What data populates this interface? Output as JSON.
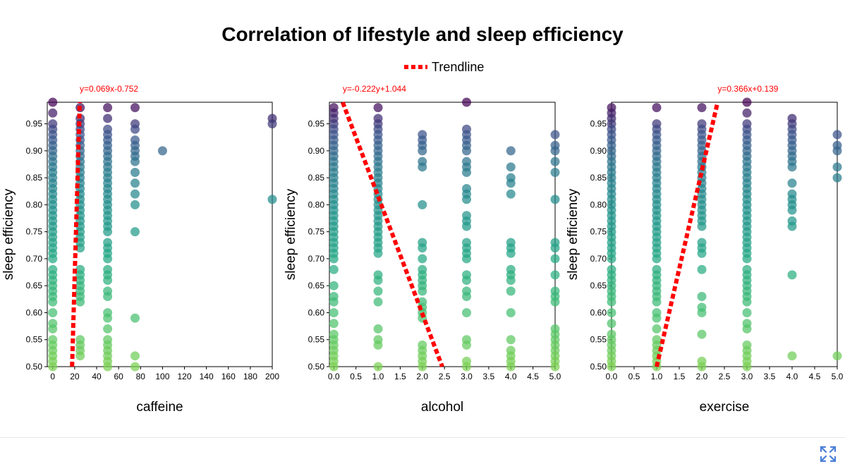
{
  "chart_data": {
    "type": "scatter",
    "title": "Correlation of lifestyle and sleep efficiency",
    "legend": {
      "label": "Trendline",
      "placement": "top-center",
      "color": "#ff0000"
    },
    "ylabel": "sleep efficiency",
    "ylim": [
      0.5,
      0.99
    ],
    "y_ticks": [
      "0.50",
      "0.55",
      "0.60",
      "0.65",
      "0.70",
      "0.75",
      "0.80",
      "0.85",
      "0.90",
      "0.95"
    ],
    "colormap": "viridis",
    "panels": [
      {
        "xlabel": "caffeine",
        "xlim": [
          -5,
          200
        ],
        "x_ticks": [
          "0",
          "20",
          "40",
          "60",
          "80",
          "100",
          "120",
          "140",
          "160",
          "180",
          "200"
        ],
        "trendline": {
          "equation": "y=0.069x-0.752",
          "x_from": 17.6,
          "x_to": 24.6
        },
        "points": [
          {
            "x": 0,
            "ys": [
              0.99,
              0.97,
              0.95,
              0.94,
              0.93,
              0.92,
              0.91,
              0.9,
              0.89,
              0.88,
              0.87,
              0.86,
              0.85,
              0.84,
              0.83,
              0.82,
              0.81,
              0.8,
              0.79,
              0.78,
              0.77,
              0.76,
              0.75,
              0.74,
              0.73,
              0.72,
              0.71,
              0.7,
              0.68,
              0.67,
              0.66,
              0.65,
              0.64,
              0.63,
              0.62,
              0.6,
              0.58,
              0.57,
              0.55,
              0.54,
              0.53,
              0.52,
              0.51,
              0.5
            ]
          },
          {
            "x": 25,
            "ys": [
              0.98,
              0.96,
              0.95,
              0.94,
              0.93,
              0.92,
              0.91,
              0.9,
              0.89,
              0.88,
              0.87,
              0.86,
              0.85,
              0.84,
              0.83,
              0.82,
              0.81,
              0.8,
              0.79,
              0.78,
              0.77,
              0.76,
              0.75,
              0.74,
              0.73,
              0.72,
              0.68,
              0.67,
              0.66,
              0.65,
              0.64,
              0.63,
              0.62,
              0.55,
              0.54,
              0.53,
              0.52
            ]
          },
          {
            "x": 50,
            "ys": [
              0.98,
              0.96,
              0.94,
              0.93,
              0.92,
              0.91,
              0.9,
              0.89,
              0.88,
              0.87,
              0.86,
              0.85,
              0.84,
              0.83,
              0.82,
              0.81,
              0.8,
              0.79,
              0.78,
              0.77,
              0.76,
              0.75,
              0.73,
              0.72,
              0.71,
              0.7,
              0.68,
              0.67,
              0.66,
              0.64,
              0.63,
              0.6,
              0.59,
              0.57,
              0.55,
              0.54,
              0.53,
              0.52,
              0.51,
              0.5
            ]
          },
          {
            "x": 75,
            "ys": [
              0.98,
              0.95,
              0.94,
              0.92,
              0.91,
              0.9,
              0.89,
              0.88,
              0.86,
              0.84,
              0.82,
              0.8,
              0.75,
              0.59,
              0.52,
              0.5
            ]
          },
          {
            "x": 100,
            "ys": [
              0.9
            ]
          },
          {
            "x": 200,
            "ys": [
              0.96,
              0.95,
              0.81
            ]
          }
        ]
      },
      {
        "xlabel": "alcohol",
        "xlim": [
          -0.1,
          5.0
        ],
        "x_ticks": [
          "0.0",
          "0.5",
          "1.0",
          "1.5",
          "2.0",
          "2.5",
          "3.0",
          "3.5",
          "4.0",
          "4.5",
          "5.0"
        ],
        "trendline": {
          "equation": "y=-0.222y+1.044",
          "x_from": 0.2,
          "x_to": 2.45
        },
        "points": [
          {
            "x": 0,
            "ys": [
              0.98,
              0.97,
              0.96,
              0.95,
              0.94,
              0.93,
              0.92,
              0.91,
              0.9,
              0.89,
              0.88,
              0.87,
              0.86,
              0.85,
              0.84,
              0.83,
              0.82,
              0.81,
              0.8,
              0.79,
              0.78,
              0.77,
              0.76,
              0.75,
              0.74,
              0.73,
              0.72,
              0.71,
              0.7,
              0.68,
              0.65,
              0.63,
              0.62,
              0.6,
              0.58,
              0.56,
              0.55,
              0.54,
              0.53,
              0.52,
              0.51,
              0.5
            ]
          },
          {
            "x": 1,
            "ys": [
              0.98,
              0.96,
              0.95,
              0.94,
              0.93,
              0.92,
              0.91,
              0.9,
              0.89,
              0.88,
              0.87,
              0.86,
              0.85,
              0.84,
              0.83,
              0.82,
              0.81,
              0.8,
              0.79,
              0.78,
              0.77,
              0.76,
              0.75,
              0.74,
              0.73,
              0.72,
              0.71,
              0.67,
              0.66,
              0.64,
              0.62,
              0.57,
              0.55,
              0.54,
              0.5
            ]
          },
          {
            "x": 2,
            "ys": [
              0.93,
              0.92,
              0.91,
              0.9,
              0.88,
              0.87,
              0.8,
              0.73,
              0.72,
              0.7,
              0.68,
              0.67,
              0.66,
              0.65,
              0.64,
              0.62,
              0.61,
              0.6,
              0.59,
              0.54,
              0.53,
              0.52,
              0.51,
              0.5
            ]
          },
          {
            "x": 3,
            "ys": [
              0.99,
              0.94,
              0.93,
              0.92,
              0.91,
              0.9,
              0.88,
              0.87,
              0.86,
              0.83,
              0.82,
              0.81,
              0.78,
              0.77,
              0.76,
              0.73,
              0.72,
              0.71,
              0.7,
              0.67,
              0.66,
              0.64,
              0.63,
              0.6,
              0.55,
              0.54,
              0.51,
              0.5
            ]
          },
          {
            "x": 4,
            "ys": [
              0.9,
              0.87,
              0.85,
              0.84,
              0.82,
              0.73,
              0.72,
              0.71,
              0.68,
              0.67,
              0.66,
              0.64,
              0.6,
              0.55,
              0.53,
              0.52,
              0.51,
              0.5
            ]
          },
          {
            "x": 5,
            "ys": [
              0.93,
              0.91,
              0.9,
              0.88,
              0.86,
              0.81,
              0.73,
              0.72,
              0.7,
              0.67,
              0.64,
              0.63,
              0.62,
              0.57,
              0.56,
              0.55,
              0.54,
              0.53,
              0.52,
              0.51,
              0.5
            ]
          }
        ]
      },
      {
        "xlabel": "exercise",
        "xlim": [
          0,
          5.0
        ],
        "x_ticks": [
          "0.0",
          "0.5",
          "1.0",
          "1.5",
          "2.0",
          "2.5",
          "3.0",
          "3.5",
          "4.0",
          "4.5",
          "5.0"
        ],
        "trendline": {
          "equation": "y=0.366x+0.139",
          "x_from": 1.0,
          "x_to": 2.35
        },
        "points": [
          {
            "x": 0,
            "ys": [
              0.98,
              0.97,
              0.96,
              0.95,
              0.94,
              0.93,
              0.92,
              0.91,
              0.9,
              0.89,
              0.88,
              0.87,
              0.86,
              0.85,
              0.84,
              0.83,
              0.82,
              0.81,
              0.8,
              0.79,
              0.78,
              0.77,
              0.76,
              0.75,
              0.74,
              0.73,
              0.72,
              0.71,
              0.7,
              0.68,
              0.67,
              0.66,
              0.65,
              0.64,
              0.63,
              0.62,
              0.6,
              0.58,
              0.56,
              0.55,
              0.54,
              0.53,
              0.52,
              0.51,
              0.5
            ]
          },
          {
            "x": 1,
            "ys": [
              0.98,
              0.95,
              0.94,
              0.93,
              0.92,
              0.91,
              0.9,
              0.89,
              0.88,
              0.87,
              0.86,
              0.85,
              0.84,
              0.83,
              0.82,
              0.81,
              0.8,
              0.79,
              0.78,
              0.77,
              0.76,
              0.75,
              0.74,
              0.73,
              0.72,
              0.71,
              0.7,
              0.68,
              0.67,
              0.66,
              0.65,
              0.64,
              0.63,
              0.62,
              0.6,
              0.59,
              0.57,
              0.55,
              0.54,
              0.53,
              0.52,
              0.51,
              0.5
            ]
          },
          {
            "x": 2,
            "ys": [
              0.98,
              0.95,
              0.94,
              0.93,
              0.92,
              0.91,
              0.9,
              0.89,
              0.88,
              0.87,
              0.86,
              0.85,
              0.84,
              0.83,
              0.82,
              0.81,
              0.8,
              0.79,
              0.78,
              0.77,
              0.76,
              0.73,
              0.72,
              0.71,
              0.68,
              0.63,
              0.61,
              0.6,
              0.56,
              0.51,
              0.5
            ]
          },
          {
            "x": 3,
            "ys": [
              0.99,
              0.97,
              0.95,
              0.94,
              0.93,
              0.92,
              0.91,
              0.9,
              0.89,
              0.88,
              0.87,
              0.86,
              0.85,
              0.84,
              0.83,
              0.82,
              0.81,
              0.8,
              0.79,
              0.78,
              0.77,
              0.76,
              0.75,
              0.74,
              0.73,
              0.72,
              0.71,
              0.7,
              0.68,
              0.67,
              0.66,
              0.65,
              0.64,
              0.63,
              0.62,
              0.6,
              0.58,
              0.57,
              0.54,
              0.53,
              0.52,
              0.51,
              0.5
            ]
          },
          {
            "x": 4,
            "ys": [
              0.96,
              0.95,
              0.94,
              0.93,
              0.92,
              0.91,
              0.9,
              0.89,
              0.88,
              0.87,
              0.84,
              0.82,
              0.81,
              0.8,
              0.79,
              0.77,
              0.76,
              0.67,
              0.52
            ]
          },
          {
            "x": 5,
            "ys": [
              0.93,
              0.91,
              0.9,
              0.87,
              0.85,
              0.52
            ]
          }
        ]
      }
    ]
  },
  "ui": {
    "expand_icon": "expand-icon",
    "expand_color": "#4a7fd8"
  }
}
